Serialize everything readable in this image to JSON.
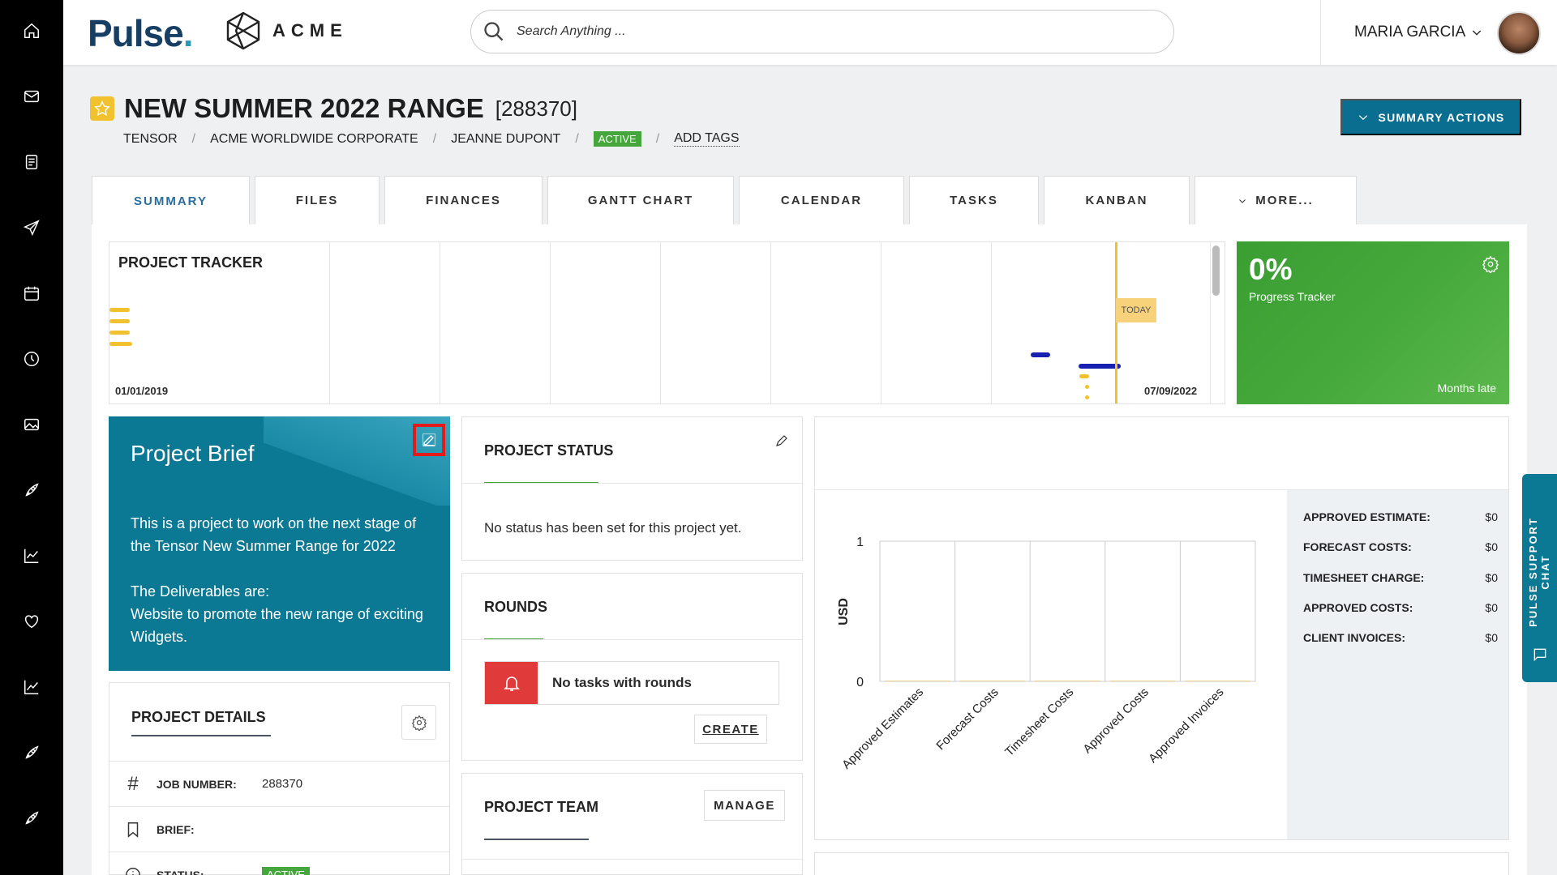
{
  "brand": {
    "logo": "Pulse",
    "logo_dot": ".",
    "company": "ACME"
  },
  "search": {
    "placeholder": "Search Anything ..."
  },
  "user": {
    "name": "MARIA GARCIA"
  },
  "project": {
    "title": "NEW SUMMER 2022 RANGE",
    "code": "[288370]",
    "breadcrumb": [
      "TENSOR",
      "ACME WORLDWIDE CORPORATE",
      "JEANNE DUPONT"
    ],
    "status_badge": "ACTIVE",
    "add_tags": "ADD TAGS"
  },
  "actions": {
    "summary": "SUMMARY ACTIONS"
  },
  "tabs": [
    "SUMMARY",
    "FILES",
    "FINANCES",
    "GANTT CHART",
    "CALENDAR",
    "TASKS",
    "KANBAN",
    "MORE..."
  ],
  "tracker": {
    "title": "PROJECT TRACKER",
    "start_date": "01/01/2019",
    "end_date": "07/09/2022",
    "today": "TODAY"
  },
  "progress": {
    "percent": "0%",
    "label": "Progress Tracker",
    "late": "Months late"
  },
  "brief": {
    "title": "Project Brief",
    "line1": "This is a project to work on the next stage of the Tensor New Summer Range for 2022",
    "line2": "The Deliverables are:",
    "line3": "Website to promote the new range of exciting Widgets."
  },
  "details": {
    "title": "PROJECT DETAILS",
    "job_label": "JOB NUMBER:",
    "job_value": "288370",
    "brief_label": "BRIEF:",
    "status_label": "STATUS:",
    "status_value": "ACTIVE"
  },
  "status_card": {
    "title": "PROJECT STATUS",
    "message": "No status has been set for this project yet."
  },
  "rounds": {
    "title": "ROUNDS",
    "empty": "No tasks with rounds",
    "create": "CREATE"
  },
  "team": {
    "title": "PROJECT TEAM",
    "manage": "MANAGE"
  },
  "finance": {
    "rows": [
      {
        "label": "APPROVED ESTIMATE:",
        "value": "$0"
      },
      {
        "label": "FORECAST COSTS:",
        "value": "$0"
      },
      {
        "label": "TIMESHEET CHARGE:",
        "value": "$0"
      },
      {
        "label": "APPROVED COSTS:",
        "value": "$0"
      },
      {
        "label": "CLIENT INVOICES:",
        "value": "$0"
      }
    ]
  },
  "chart_data": {
    "type": "bar",
    "categories": [
      "Approved Estimates",
      "Forecast Costs",
      "Timesheet Costs",
      "Approved Costs",
      "Approved Invoices"
    ],
    "values": [
      0,
      0,
      0,
      0,
      0
    ],
    "ylabel": "USD",
    "ylim": [
      0,
      1
    ],
    "yticks": [
      "0",
      "1"
    ]
  },
  "support_chat": {
    "label": "PULSE SUPPORT CHAT"
  },
  "colors": {
    "accent": "#0b7894",
    "brand_dark": "#173e63",
    "success": "#45a63c",
    "danger": "#e03a3a",
    "today": "#f2c12e",
    "tracker_bar": "#1720b0"
  },
  "icons": [
    "home-icon",
    "mail-icon",
    "document-icon",
    "send-icon",
    "calendar-icon",
    "clock-icon",
    "image-icon",
    "rocket-icon",
    "chart-icon",
    "heart-icon",
    "trending-icon",
    "rocket-icon",
    "rocket-icon"
  ]
}
